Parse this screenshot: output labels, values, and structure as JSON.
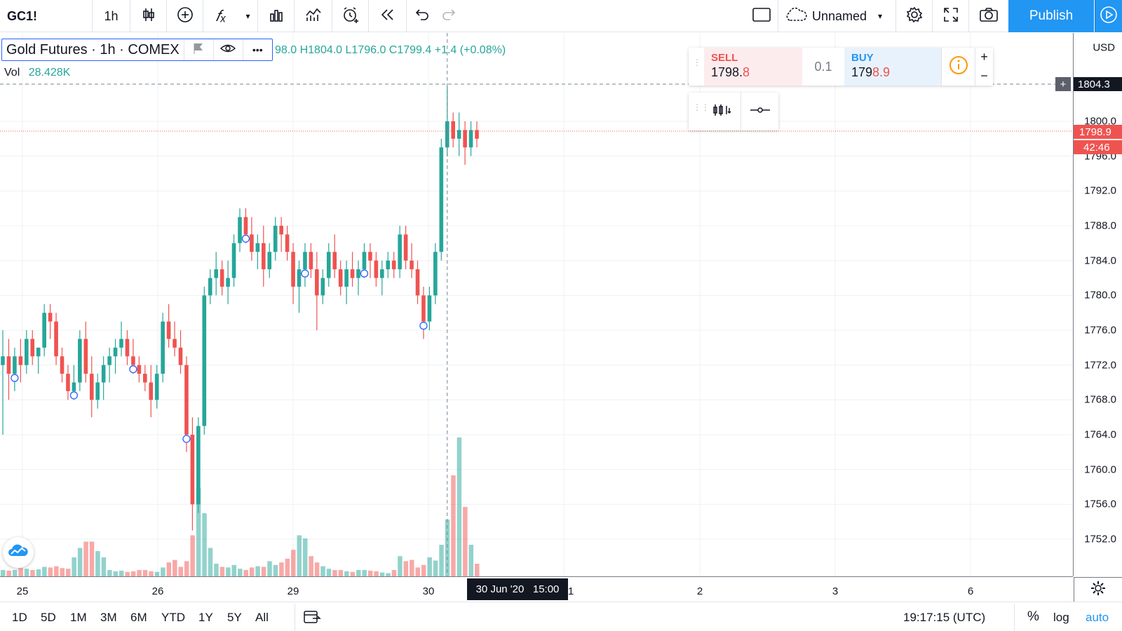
{
  "toolbar": {
    "symbol": "GC1!",
    "interval": "1h",
    "layout_name": "Unnamed",
    "publish_label": "Publish"
  },
  "legend": {
    "title": "Gold Futures · 1h · COMEX",
    "ohlc": "98.0  H1804.0  L1796.0  C1799.4  +1.4 (+0.08%)",
    "vol_label": "Vol",
    "vol_value": "28.428K"
  },
  "trade": {
    "sell_label": "SELL",
    "sell_price_main": "1798.",
    "sell_price_tail": "8",
    "quantity": "0.1",
    "buy_label": "BUY",
    "buy_price_main": "179",
    "buy_price_tail": "8.9"
  },
  "price_axis": {
    "currency": "USD",
    "ticks": [
      "1800.0",
      "1796.0",
      "1792.0",
      "1788.0",
      "1784.0",
      "1780.0",
      "1776.0",
      "1772.0",
      "1768.0",
      "1764.0",
      "1760.0",
      "1756.0",
      "1752.0"
    ],
    "crosshair_price": "1804.3",
    "last_price": "1798.9",
    "countdown": "42:46"
  },
  "time_axis": {
    "ticks": [
      "25",
      "26",
      "29",
      "30",
      "1",
      "2",
      "3",
      "6"
    ],
    "crosshair_time": "30 Jun '20   15:00"
  },
  "bottom_bar": {
    "ranges": [
      "1D",
      "5D",
      "1M",
      "3M",
      "6M",
      "YTD",
      "1Y",
      "5Y",
      "All"
    ],
    "clock": "19:17:15 (UTC)",
    "percent": "%",
    "log": "log",
    "auto": "auto"
  },
  "colors": {
    "up": "#26a69a",
    "down": "#ef5350",
    "accent": "#2196f3"
  },
  "chart_data": {
    "type": "candlestick",
    "symbol": "GC1!",
    "ylim": [
      1749,
      1810
    ],
    "candles": [
      [
        1772,
        1776,
        1764,
        1773
      ],
      [
        1773,
        1775,
        1768,
        1771
      ],
      [
        1771,
        1774,
        1769,
        1773
      ],
      [
        1773,
        1775,
        1770,
        1772
      ],
      [
        1772,
        1776,
        1771,
        1775
      ],
      [
        1775,
        1776,
        1772,
        1773
      ],
      [
        1773,
        1774,
        1771,
        1774
      ],
      [
        1774,
        1779,
        1773,
        1778
      ],
      [
        1778,
        1779,
        1775,
        1777
      ],
      [
        1777,
        1778,
        1772,
        1773
      ],
      [
        1773,
        1774,
        1770,
        1771
      ],
      [
        1771,
        1772,
        1768,
        1769
      ],
      [
        1769,
        1772,
        1768,
        1770
      ],
      [
        1770,
        1776,
        1769,
        1775
      ],
      [
        1775,
        1777,
        1770,
        1771
      ],
      [
        1771,
        1773,
        1766,
        1768
      ],
      [
        1768,
        1771,
        1767,
        1770
      ],
      [
        1770,
        1773,
        1768,
        1772
      ],
      [
        1772,
        1774,
        1770,
        1773
      ],
      [
        1773,
        1775,
        1771,
        1774
      ],
      [
        1774,
        1777,
        1773,
        1775
      ],
      [
        1775,
        1776,
        1772,
        1773
      ],
      [
        1773,
        1775,
        1771,
        1772
      ],
      [
        1772,
        1773,
        1770,
        1771
      ],
      [
        1771,
        1772,
        1769,
        1770
      ],
      [
        1770,
        1772,
        1766,
        1768
      ],
      [
        1768,
        1772,
        1767,
        1771
      ],
      [
        1771,
        1778,
        1770,
        1777
      ],
      [
        1777,
        1779,
        1774,
        1775
      ],
      [
        1775,
        1777,
        1773,
        1774
      ],
      [
        1774,
        1776,
        1771,
        1772
      ],
      [
        1772,
        1773,
        1762,
        1764
      ],
      [
        1764,
        1766,
        1753,
        1756
      ],
      [
        1756,
        1766,
        1755,
        1765
      ],
      [
        1765,
        1781,
        1764,
        1780
      ],
      [
        1780,
        1783,
        1779,
        1782
      ],
      [
        1782,
        1785,
        1780,
        1783
      ],
      [
        1783,
        1784,
        1780,
        1781
      ],
      [
        1781,
        1784,
        1779,
        1782
      ],
      [
        1782,
        1787,
        1781,
        1786
      ],
      [
        1786,
        1790,
        1785,
        1789
      ],
      [
        1789,
        1790,
        1786,
        1787
      ],
      [
        1787,
        1789,
        1784,
        1785
      ],
      [
        1785,
        1787,
        1783,
        1786
      ],
      [
        1786,
        1788,
        1781,
        1783
      ],
      [
        1783,
        1786,
        1782,
        1785
      ],
      [
        1785,
        1789,
        1784,
        1788
      ],
      [
        1788,
        1789,
        1785,
        1787
      ],
      [
        1787,
        1788,
        1784,
        1785
      ],
      [
        1785,
        1786,
        1779,
        1781
      ],
      [
        1781,
        1784,
        1778,
        1783
      ],
      [
        1783,
        1786,
        1781,
        1785
      ],
      [
        1785,
        1786,
        1782,
        1783
      ],
      [
        1783,
        1785,
        1776,
        1780
      ],
      [
        1780,
        1783,
        1779,
        1782
      ],
      [
        1782,
        1786,
        1781,
        1785
      ],
      [
        1785,
        1787,
        1782,
        1783
      ],
      [
        1783,
        1784,
        1780,
        1781
      ],
      [
        1781,
        1784,
        1779,
        1783
      ],
      [
        1783,
        1785,
        1781,
        1782
      ],
      [
        1782,
        1784,
        1780,
        1783
      ],
      [
        1783,
        1786,
        1782,
        1785
      ],
      [
        1785,
        1786,
        1782,
        1784
      ],
      [
        1784,
        1785,
        1781,
        1782
      ],
      [
        1782,
        1784,
        1780,
        1783
      ],
      [
        1783,
        1785,
        1782,
        1784
      ],
      [
        1784,
        1785,
        1782,
        1783
      ],
      [
        1783,
        1788,
        1782,
        1787
      ],
      [
        1787,
        1788,
        1783,
        1784
      ],
      [
        1784,
        1786,
        1782,
        1783
      ],
      [
        1783,
        1784,
        1779,
        1780
      ],
      [
        1780,
        1781,
        1775,
        1777
      ],
      [
        1777,
        1781,
        1776,
        1780
      ],
      [
        1780,
        1786,
        1779,
        1785
      ],
      [
        1785,
        1798,
        1784,
        1797
      ],
      [
        1797,
        1804,
        1796,
        1800
      ],
      [
        1800,
        1801,
        1797,
        1798
      ],
      [
        1798,
        1801,
        1796,
        1799
      ],
      [
        1799,
        1800,
        1795,
        1797
      ],
      [
        1797,
        1800,
        1796,
        1799
      ],
      [
        1799,
        1800,
        1797,
        1798
      ]
    ],
    "volume": [
      1,
      0.9,
      1,
      1.3,
      1.2,
      1,
      1.1,
      1.5,
      1.4,
      1.6,
      1.3,
      1.2,
      3,
      4.5,
      5.5,
      5.5,
      4,
      3,
      1,
      0.8,
      0.9,
      0.7,
      0.8,
      1,
      1,
      0.8,
      0.7,
      1.4,
      2.2,
      2.6,
      1.5,
      2.4,
      6.5,
      14,
      10,
      4.5,
      2,
      1.5,
      1.4,
      1.8,
      1.2,
      1,
      1.4,
      1.6,
      1.5,
      2.4,
      1.8,
      2.2,
      2.8,
      4.2,
      6.5,
      6,
      3.2,
      2.2,
      1.6,
      1.2,
      1,
      1,
      0.8,
      0.7,
      1,
      1,
      0.9,
      0.8,
      0.6,
      0.5,
      1,
      3.2,
      2.4,
      2.6,
      1.4,
      1.8,
      3,
      2.5,
      5,
      9,
      16,
      22,
      11,
      5,
      2
    ],
    "markers": [
      "o",
      "o",
      "o",
      "o",
      "o",
      "o",
      "o",
      "o",
      "o"
    ]
  }
}
